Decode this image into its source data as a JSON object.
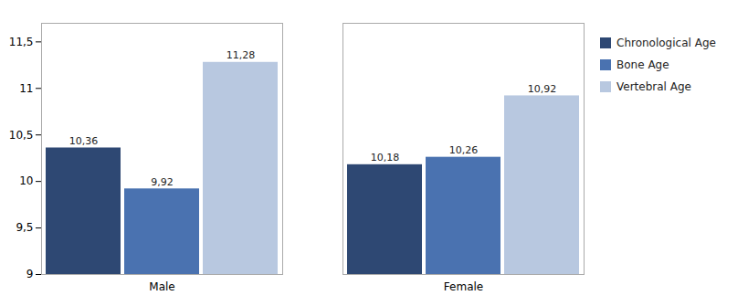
{
  "chart_data": {
    "type": "bar",
    "categories": [
      "Male",
      "Female"
    ],
    "series": [
      {
        "name": "Chronological Age",
        "color": "#2E4873",
        "values": [
          10.36,
          10.18
        ],
        "value_labels": [
          "10,36",
          "10,18"
        ]
      },
      {
        "name": "Bone Age",
        "color": "#4A72B0",
        "values": [
          9.92,
          10.26
        ],
        "value_labels": [
          "9,92",
          "10,26"
        ]
      },
      {
        "name": "Vertebral Age",
        "color": "#B8C8E0",
        "values": [
          11.28,
          10.92
        ],
        "value_labels": [
          "11,28",
          "10,92"
        ]
      }
    ],
    "ylim": [
      9,
      11.7
    ],
    "yticks": [
      9,
      {
        "value": 9.5,
        "label": "9,5"
      },
      10,
      {
        "value": 10.5,
        "label": "10,5"
      },
      11,
      {
        "value": 11.5,
        "label": "11,5"
      }
    ],
    "grid": false,
    "legend": "upper right",
    "data_labels": true
  }
}
